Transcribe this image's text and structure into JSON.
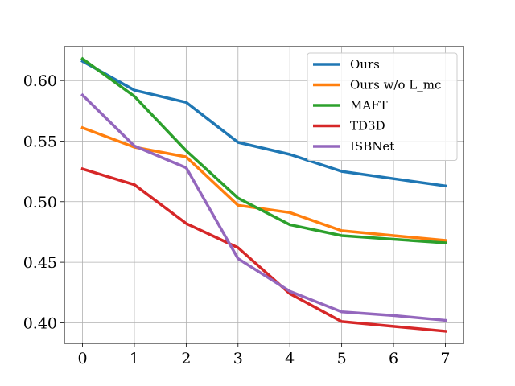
{
  "chart_data": {
    "type": "line",
    "title": "",
    "xlabel": "",
    "ylabel": "",
    "x": [
      0,
      1,
      2,
      3,
      4,
      5,
      6,
      7
    ],
    "xlim": [
      -0.35,
      7.35
    ],
    "ylim": [
      0.383,
      0.628
    ],
    "xticks": [
      0,
      1,
      2,
      3,
      4,
      5,
      6,
      7
    ],
    "yticks": [
      0.4,
      0.45,
      0.5,
      0.55,
      0.6
    ],
    "ytick_labels": [
      "0.40",
      "0.45",
      "0.50",
      "0.55",
      "0.60"
    ],
    "grid": true,
    "legend_position": "top-right",
    "series": [
      {
        "name": "Ours",
        "color": "#1f77b4",
        "values": [
          0.616,
          0.592,
          0.582,
          0.549,
          0.539,
          0.525,
          0.519,
          0.513
        ]
      },
      {
        "name": "Ours w/o L_mc",
        "color": "#ff7f0e",
        "values": [
          0.561,
          0.545,
          0.537,
          0.497,
          0.491,
          0.476,
          0.472,
          0.468
        ]
      },
      {
        "name": "MAFT",
        "color": "#2ca02c",
        "values": [
          0.618,
          0.587,
          0.542,
          0.503,
          0.481,
          0.472,
          0.469,
          0.466
        ]
      },
      {
        "name": "TD3D",
        "color": "#d62728",
        "values": [
          0.527,
          0.514,
          0.482,
          0.462,
          0.424,
          0.401,
          0.397,
          0.393
        ]
      },
      {
        "name": "ISBNet",
        "color": "#9467bd",
        "values": [
          0.588,
          0.546,
          0.528,
          0.453,
          0.426,
          0.409,
          0.406,
          0.402
        ]
      }
    ]
  }
}
